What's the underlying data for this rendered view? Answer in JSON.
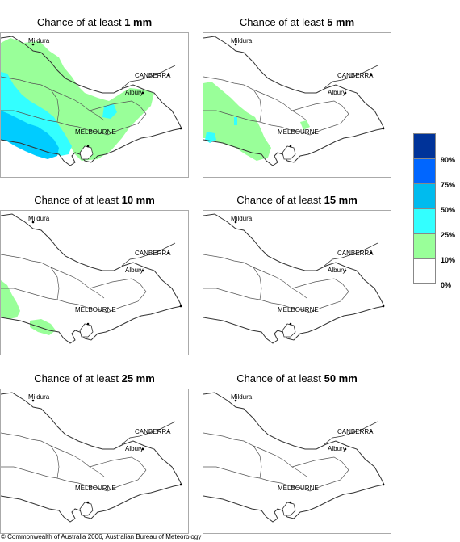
{
  "panels": [
    {
      "id": "p1",
      "prefix": "Chance of at least ",
      "amount": "1 mm"
    },
    {
      "id": "p2",
      "prefix": "Chance of at least ",
      "amount": "5 mm"
    },
    {
      "id": "p3",
      "prefix": "Chance of at least ",
      "amount": "10 mm"
    },
    {
      "id": "p4",
      "prefix": "Chance of at least ",
      "amount": "15 mm"
    },
    {
      "id": "p5",
      "prefix": "Chance of at least ",
      "amount": "25 mm"
    },
    {
      "id": "p6",
      "prefix": "Chance of at least ",
      "amount": "50 mm"
    }
  ],
  "places": {
    "mildura": "Mildura",
    "canberra": "CANBERRA",
    "albury": "Albury",
    "melbourne": "MELBOURNE"
  },
  "legend": {
    "colors": [
      "#003399",
      "#0066ff",
      "#00bbee",
      "#33ffff",
      "#99ff99",
      "#ffffff"
    ],
    "labels": [
      "90%",
      "75%",
      "50%",
      "25%",
      "10%",
      "0%"
    ]
  },
  "colors": {
    "green": "#99ff99",
    "cyan": "#33ffff",
    "sky": "#00ccff",
    "blue": "#00aaee"
  },
  "copyright": "© Commonwealth of Australia 2006, Australian Bureau of Meteorology"
}
